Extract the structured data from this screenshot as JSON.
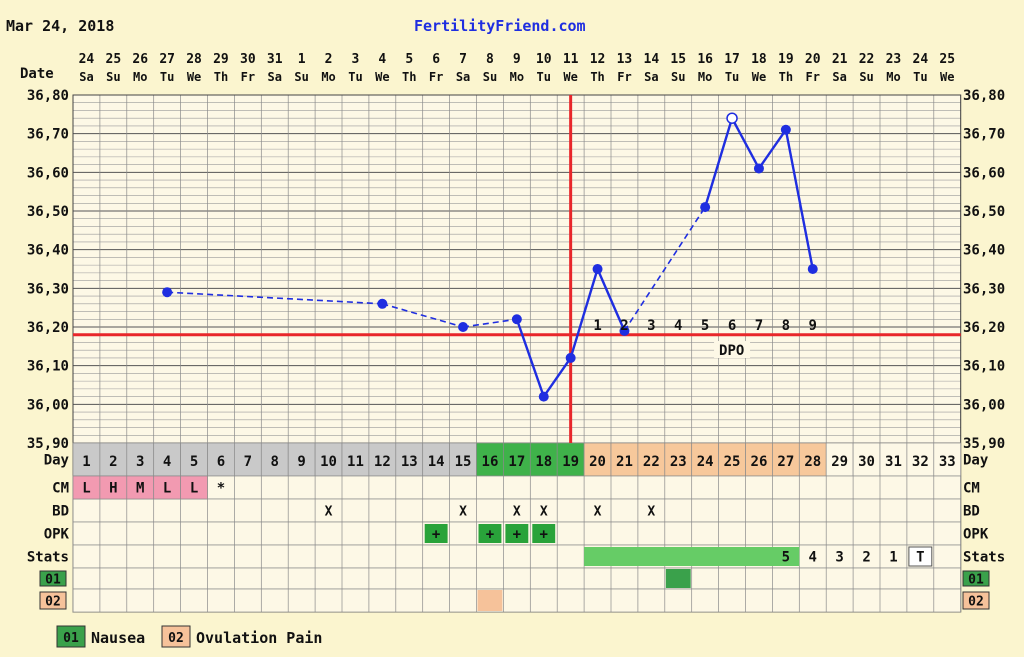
{
  "header": {
    "date_text": "Mar 24, 2018",
    "site_text": "FertilityFriend.com"
  },
  "labels": {
    "date": "Date",
    "day": "Day",
    "cm": "CM",
    "bd": "BD",
    "opk": "OPK",
    "stats": "Stats",
    "dpo": "DPO"
  },
  "colors": {
    "background": "#fbf5cf",
    "plot_area": "#fdf8e6",
    "temp_line": "#1f2ee0",
    "coverline": "#e8262a",
    "ovulation_line": "#e8262a",
    "day_gray": "#c9c9c9",
    "day_green": "#3fb24a",
    "day_peach": "#f7c89b",
    "cm_pink": "#f29ab1",
    "opk_green": "#29a33a",
    "stats_green": "#66cc66",
    "legend_01": "#3aa14b",
    "legend_02": "#f6c29a"
  },
  "chart_data": {
    "type": "line",
    "title": "",
    "dates": [
      "24",
      "25",
      "26",
      "27",
      "28",
      "29",
      "30",
      "31",
      "1",
      "2",
      "3",
      "4",
      "5",
      "6",
      "7",
      "8",
      "9",
      "10",
      "11",
      "12",
      "13",
      "14",
      "15",
      "16",
      "17",
      "18",
      "19",
      "20",
      "21",
      "22",
      "23",
      "24",
      "25"
    ],
    "weekdays": [
      "Sa",
      "Su",
      "Mo",
      "Tu",
      "We",
      "Th",
      "Fr",
      "Sa",
      "Su",
      "Mo",
      "Tu",
      "We",
      "Th",
      "Fr",
      "Sa",
      "Su",
      "Mo",
      "Tu",
      "We",
      "Th",
      "Fr",
      "Sa",
      "Su",
      "Mo",
      "Tu",
      "We",
      "Th",
      "Fr",
      "Sa",
      "Su",
      "Mo",
      "Tu",
      "We"
    ],
    "cycle_days": [
      "1",
      "2",
      "3",
      "4",
      "5",
      "6",
      "7",
      "8",
      "9",
      "10",
      "11",
      "12",
      "13",
      "14",
      "15",
      "16",
      "17",
      "18",
      "19",
      "20",
      "21",
      "22",
      "23",
      "24",
      "25",
      "26",
      "27",
      "28",
      "29",
      "30",
      "31",
      "32",
      "33"
    ],
    "y_ticks": [
      "36,80",
      "36,70",
      "36,60",
      "36,50",
      "36,40",
      "36,30",
      "36,20",
      "36,10",
      "36,00",
      "35,90"
    ],
    "ylim": [
      35.9,
      36.8
    ],
    "temperatures": [
      {
        "day": 4,
        "temp": 36.29,
        "dashed_from_prev": false
      },
      {
        "day": 12,
        "temp": 36.26,
        "dashed_from_prev": true
      },
      {
        "day": 15,
        "temp": 36.2,
        "dashed_from_prev": true
      },
      {
        "day": 17,
        "temp": 36.22,
        "dashed_from_prev": true
      },
      {
        "day": 18,
        "temp": 36.02,
        "dashed_from_prev": false
      },
      {
        "day": 19,
        "temp": 36.12,
        "dashed_from_prev": false
      },
      {
        "day": 20,
        "temp": 36.35,
        "dashed_from_prev": false
      },
      {
        "day": 21,
        "temp": 36.19,
        "dashed_from_prev": false
      },
      {
        "day": 24,
        "temp": 36.51,
        "dashed_from_prev": true
      },
      {
        "day": 25,
        "temp": 36.74,
        "dashed_from_prev": false,
        "open": true
      },
      {
        "day": 26,
        "temp": 36.61,
        "dashed_from_prev": false
      },
      {
        "day": 27,
        "temp": 36.71,
        "dashed_from_prev": false
      },
      {
        "day": 28,
        "temp": 36.35,
        "dashed_from_prev": false
      }
    ],
    "coverline": 36.18,
    "ovulation_after_day": 18,
    "dpo_numbers": [
      {
        "day": 20,
        "label": "1"
      },
      {
        "day": 21,
        "label": "2"
      },
      {
        "day": 22,
        "label": "3"
      },
      {
        "day": 23,
        "label": "4"
      },
      {
        "day": 24,
        "label": "5"
      },
      {
        "day": 25,
        "label": "6"
      },
      {
        "day": 26,
        "label": "7"
      },
      {
        "day": 27,
        "label": "8"
      },
      {
        "day": 28,
        "label": "9"
      }
    ],
    "day_colors": {
      "gray": [
        1,
        15
      ],
      "green": [
        16,
        19
      ],
      "peach": [
        20,
        28
      ]
    },
    "cm": [
      {
        "day": 1,
        "label": "L",
        "shaded": true
      },
      {
        "day": 2,
        "label": "H",
        "shaded": true
      },
      {
        "day": 3,
        "label": "M",
        "shaded": true
      },
      {
        "day": 4,
        "label": "L",
        "shaded": true
      },
      {
        "day": 5,
        "label": "L",
        "shaded": true
      },
      {
        "day": 6,
        "label": "*",
        "shaded": false
      }
    ],
    "bd": [
      10,
      15,
      17,
      18,
      20,
      22
    ],
    "bd_mark": "X",
    "opk": [
      14,
      16,
      17,
      18
    ],
    "opk_mark": "+",
    "stats": {
      "green_from": 20,
      "green_to": 27,
      "cells": [
        {
          "day": 27,
          "label": "5",
          "bg": "green"
        },
        {
          "day": 28,
          "label": "4",
          "bg": "none"
        },
        {
          "day": 29,
          "label": "3",
          "bg": "none"
        },
        {
          "day": 30,
          "label": "2",
          "bg": "none"
        },
        {
          "day": 31,
          "label": "1",
          "bg": "none"
        },
        {
          "day": 32,
          "label": "T",
          "bg": "white"
        }
      ]
    },
    "symptom_rows": [
      {
        "code": "01",
        "days": [
          23
        ],
        "color": "#3aa14b"
      },
      {
        "code": "02",
        "days": [
          16
        ],
        "color": "#f6c29a"
      }
    ]
  },
  "legend": [
    {
      "code": "01",
      "label": "Nausea",
      "color": "#3aa14b"
    },
    {
      "code": "02",
      "label": "Ovulation Pain",
      "color": "#f6c29a"
    }
  ]
}
